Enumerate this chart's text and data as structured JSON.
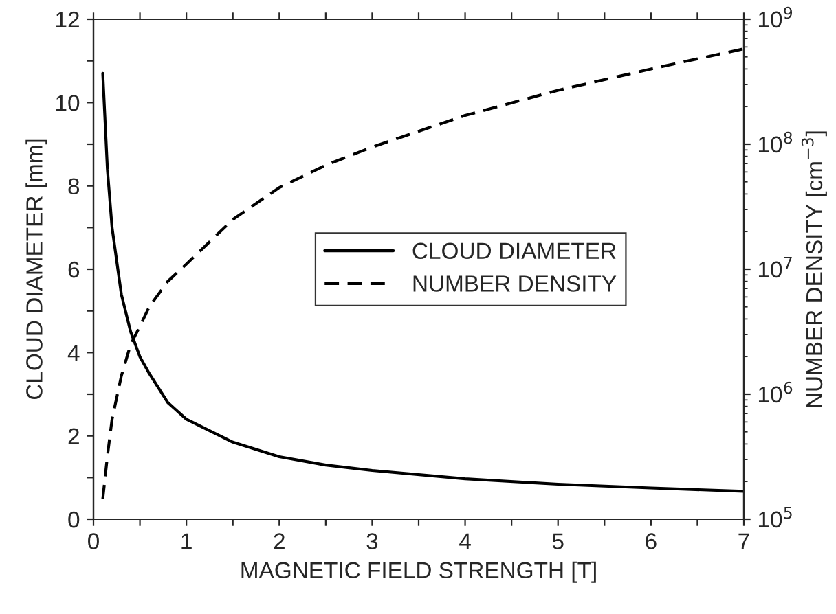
{
  "chart_data": {
    "type": "line",
    "xlabel": "MAGNETIC FIELD STRENGTH [T]",
    "ylabel": "CLOUD DIAMETER [mm]",
    "y2label": "NUMBER DENSITY [cm$^{−3}$]",
    "x": [
      0.1,
      0.15,
      0.2,
      0.3,
      0.4,
      0.5,
      0.6,
      0.8,
      1.0,
      1.5,
      2,
      2.5,
      3,
      4,
      5,
      6,
      7
    ],
    "series": [
      {
        "name": "CLOUD DIAMETER",
        "color": "#000000",
        "line_style": "solid",
        "values": [
          10.7,
          8.4,
          7.0,
          5.4,
          4.5,
          3.9,
          3.5,
          2.8,
          2.4,
          1.85,
          1.5,
          1.3,
          1.17,
          0.97,
          0.84,
          0.75,
          0.67
        ]
      },
      {
        "name": "NUMBER DENSITY",
        "color": "#000000",
        "line_style": "dashed",
        "axis": "y2",
        "values": [
          145000,
          320000,
          630000,
          1400000,
          2500000,
          3500000,
          5000000,
          8000000,
          11000000,
          25000000,
          45000000,
          68000000,
          95000000,
          170000000,
          270000000,
          400000000,
          580000000
        ]
      }
    ],
    "xlim": [
      0,
      7
    ],
    "xticks": [
      0,
      {
        "value": 0.5,
        "label": null
      },
      1,
      {
        "value": 1.5,
        "label": null
      },
      2,
      {
        "value": 2.5,
        "label": null
      },
      3,
      {
        "value": 3.5,
        "label": null
      },
      4,
      {
        "value": 4.5,
        "label": null
      },
      5,
      {
        "value": 5.5,
        "label": null
      },
      6,
      {
        "value": 6.5,
        "label": null
      },
      7
    ],
    "ylim": [
      0,
      12
    ],
    "yticks": [
      0,
      {
        "value": 1,
        "label": null
      },
      2,
      {
        "value": 3,
        "label": null
      },
      4,
      {
        "value": 5,
        "label": null
      },
      6,
      {
        "value": 7,
        "label": null
      },
      8,
      {
        "value": 9,
        "label": null
      },
      10,
      {
        "value": 11,
        "label": null
      },
      12
    ],
    "log": "y2",
    "y2lim": [
      100000,
      1000000000
    ],
    "y2ticks": [
      {
        "value": 100000,
        "label": "10$^{5}$"
      },
      {
        "value": 1000000,
        "label": "10$^{6}$"
      },
      {
        "value": 10000000,
        "label": "10$^{7}$"
      },
      {
        "value": 100000000,
        "label": "10$^{8}$"
      },
      {
        "value": 1000000000,
        "label": "10$^{9}$"
      }
    ],
    "legend": "center",
    "grid": false
  }
}
